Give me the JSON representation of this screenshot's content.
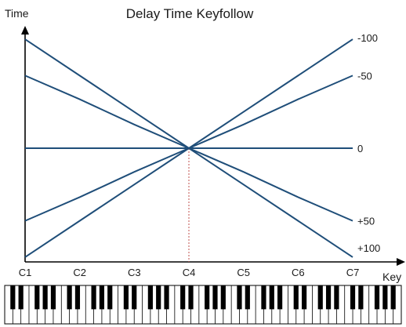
{
  "chart_data": {
    "type": "line",
    "title": "Delay Time Keyfollow",
    "ylabel": "Time",
    "xlabel": "Key",
    "x": [
      "C1",
      "C2",
      "C3",
      "C4",
      "C5",
      "C6",
      "C7"
    ],
    "pivot": "C4",
    "series": [
      {
        "name": "-100",
        "values": [
          0.03,
          0.26,
          0.49,
          0.72,
          0.95,
          1.18,
          1.41
        ]
      },
      {
        "name": "-50",
        "values": [
          0.26,
          0.41,
          0.57,
          0.72,
          0.87,
          1.03,
          1.18
        ]
      },
      {
        "name": "0",
        "values": [
          0.72,
          0.72,
          0.72,
          0.72,
          0.72,
          0.72,
          0.72
        ]
      },
      {
        "name": "+50",
        "values": [
          1.18,
          1.03,
          0.87,
          0.72,
          0.57,
          0.41,
          0.26
        ]
      },
      {
        "name": "+100",
        "values": [
          1.41,
          1.18,
          0.95,
          0.72,
          0.49,
          0.26,
          0.03
        ]
      }
    ],
    "ylim": [
      0,
      1.45
    ],
    "grid": false,
    "line_color": "#1f4e79",
    "guide_color": "#c0504d"
  },
  "keyboard": {
    "octaves": 7
  }
}
